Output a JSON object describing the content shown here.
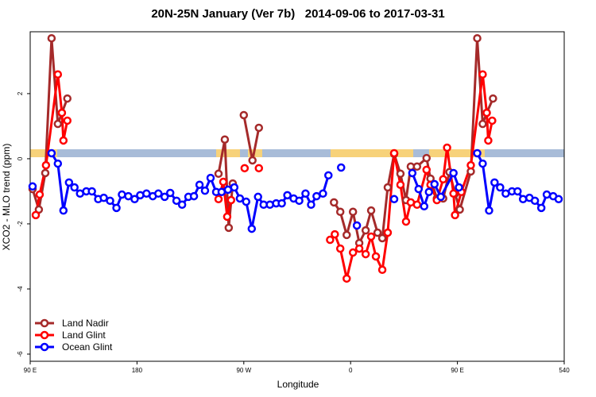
{
  "chart_data": {
    "type": "line",
    "title": "20N-25N January (Ver 7b)   2014-09-06 to 2017-03-31",
    "x_label": "Longitude",
    "y_label": "XCO2 - MLO trend (ppm)",
    "xlim": [
      90,
      540
    ],
    "ylim": [
      -6.22,
      3.9
    ],
    "xticks": [
      {
        "value": 90,
        "label": "90 E"
      },
      180,
      {
        "value": 270,
        "label": "90 W"
      },
      {
        "value": 360,
        "label": "0"
      },
      {
        "value": 450,
        "label": "90 E"
      },
      540
    ],
    "yticks": [
      -6,
      -4,
      -2,
      0,
      2
    ],
    "grid": false,
    "legend": "bottom-left",
    "series": [
      {
        "name": "Land Nadir",
        "color": "#a52a2a",
        "x": [
          92,
          97.3,
          102.7,
          108,
          113.3,
          116.7,
          121.3,
          null,
          248.7,
          254,
          257.3,
          260.7,
          null,
          270,
          277.3,
          282.7,
          null,
          346,
          351.3,
          356.7,
          362,
          367.3,
          372.7,
          377.3,
          382.7,
          386.7,
          391.3,
          396.7,
          402,
          406.7,
          410.7,
          416,
          424,
          427.3,
          432.7,
          438,
          443.3,
          448,
          452,
          461.3,
          466.7,
          471.3,
          474.7,
          480
        ],
        "values": [
          -0.93,
          -1.56,
          -0.44,
          3.7,
          1.07,
          1.41,
          1.85,
          null,
          -0.46,
          0.59,
          -2.12,
          -0.76,
          null,
          1.34,
          -0.05,
          0.95,
          null,
          -1.34,
          -1.63,
          -2.34,
          -1.63,
          -2.59,
          -2.2,
          -1.59,
          -2.27,
          -2.44,
          -0.88,
          0.15,
          -0.46,
          -1.27,
          -0.24,
          -0.24,
          0.02,
          -0.61,
          -1.22,
          -1.22,
          -0.41,
          -1.07,
          -1.56,
          -0.39,
          3.7,
          1.07,
          1.41,
          1.85
        ]
      },
      {
        "name": "Land Glint",
        "color": "#ff0000",
        "x": [
          94.7,
          98,
          103.3,
          113.3,
          116.7,
          118,
          121.3,
          null,
          248.7,
          252.7,
          256,
          259.3,
          null,
          270.7,
          null,
          282.7,
          null,
          342.7,
          346.7,
          351.3,
          356.7,
          362,
          367.3,
          372.7,
          377.3,
          381.3,
          386.7,
          391.3,
          396.7,
          402,
          406.7,
          410.7,
          416,
          424,
          427.3,
          432.7,
          438,
          441.3,
          446.7,
          448,
          453.3,
          461.3,
          471.3,
          474.7,
          476,
          479.3
        ],
        "values": [
          -1.73,
          -1.1,
          -0.2,
          2.59,
          1.41,
          0.56,
          1.17,
          null,
          -1.24,
          -0.71,
          -1.78,
          -1.27,
          null,
          -0.29,
          null,
          -0.29,
          null,
          -2.49,
          -2.32,
          -2.76,
          -3.68,
          -2.88,
          -2.76,
          -2.93,
          -2.39,
          -3.0,
          -3.41,
          -2.27,
          0.17,
          -0.8,
          -1.93,
          -1.34,
          -1.41,
          -0.34,
          -0.8,
          -1.27,
          -0.63,
          0.34,
          -1.07,
          -1.73,
          -1.02,
          -0.2,
          2.59,
          1.41,
          0.56,
          1.17
        ]
      },
      {
        "name": "Ocean Glint",
        "color": "#0000ff",
        "x": [
          92,
          null,
          108,
          113.3,
          118,
          122.7,
          127.3,
          132,
          137.3,
          142,
          147.3,
          152,
          157.3,
          162.7,
          167.3,
          172.7,
          178,
          182.7,
          188,
          193.3,
          198,
          203.3,
          208,
          213.3,
          218,
          223.3,
          228,
          232.7,
          237.3,
          242,
          246.7,
          251.3,
          256.7,
          262,
          266.7,
          272,
          276.7,
          282,
          286.7,
          292,
          297.3,
          302,
          306.7,
          312,
          316.7,
          322,
          326.7,
          331.3,
          336.7,
          341.3,
          null,
          352,
          null,
          365.3,
          null,
          396.7,
          null,
          412,
          417.3,
          422,
          426,
          430.7,
          436,
          446.7,
          451.3,
          null,
          466.7,
          471.3,
          476.7,
          481.3,
          486,
          490.7,
          496,
          500.7,
          505.3,
          510.7,
          515.3,
          520.7,
          525.3,
          530.7,
          535.3
        ],
        "values": [
          -0.85,
          null,
          0.17,
          -0.15,
          -1.59,
          -0.73,
          -0.88,
          -1.07,
          -1.0,
          -1.0,
          -1.24,
          -1.2,
          -1.29,
          -1.51,
          -1.1,
          -1.15,
          -1.24,
          -1.12,
          -1.07,
          -1.15,
          -1.07,
          -1.17,
          -1.05,
          -1.29,
          -1.41,
          -1.17,
          -1.15,
          -0.8,
          -0.98,
          -0.59,
          -1.02,
          -1.02,
          -0.95,
          -0.88,
          -1.22,
          -1.32,
          -2.15,
          -1.17,
          -1.41,
          -1.41,
          -1.37,
          -1.37,
          -1.12,
          -1.22,
          -1.29,
          -1.07,
          -1.41,
          -1.15,
          -1.07,
          -0.51,
          null,
          -0.27,
          null,
          -2.05,
          null,
          -1.24,
          null,
          -0.44,
          -0.93,
          -1.46,
          -1.02,
          -0.78,
          -1.17,
          -0.44,
          -0.88,
          null,
          0.17,
          -0.15,
          -1.59,
          -0.73,
          -0.88,
          -1.07,
          -1.0,
          -1.0,
          -1.24,
          -1.2,
          -1.29,
          -1.51,
          -1.1,
          -1.15,
          -1.24
        ]
      }
    ]
  }
}
